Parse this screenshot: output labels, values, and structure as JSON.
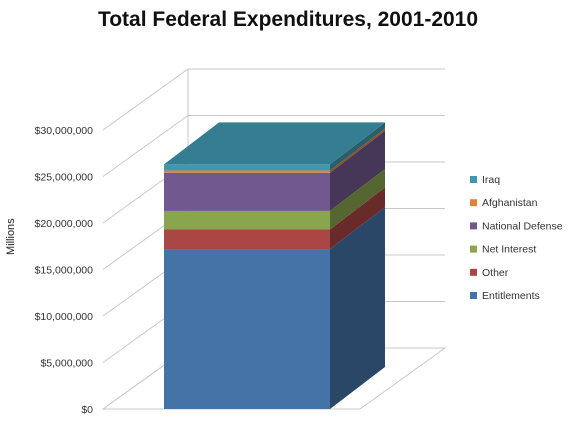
{
  "chart_data": {
    "type": "bar",
    "stacked": true,
    "three_d": true,
    "title": "Total Federal Expenditures, 2001-2010",
    "xlabel": "",
    "ylabel": "Millions",
    "categories": [
      ""
    ],
    "ylim": [
      0,
      30000000
    ],
    "y_ticks": [
      "$0",
      "$5,000,000",
      "$10,000,000",
      "$15,000,000",
      "$20,000,000",
      "$25,000,000",
      "$30,000,000"
    ],
    "grid": true,
    "legend_position": "right",
    "series": [
      {
        "name": "Entitlements",
        "values": [
          17200000
        ],
        "color": "#4573a7"
      },
      {
        "name": "Other",
        "values": [
          2100000
        ],
        "color": "#aa4644"
      },
      {
        "name": "Net Interest",
        "values": [
          2000000
        ],
        "color": "#89a54e"
      },
      {
        "name": "National Defense",
        "values": [
          4100000
        ],
        "color": "#71588f"
      },
      {
        "name": "Afghanistan",
        "values": [
          250000
        ],
        "color": "#db843d"
      },
      {
        "name": "Iraq",
        "values": [
          650000
        ],
        "color": "#4198af"
      }
    ]
  }
}
